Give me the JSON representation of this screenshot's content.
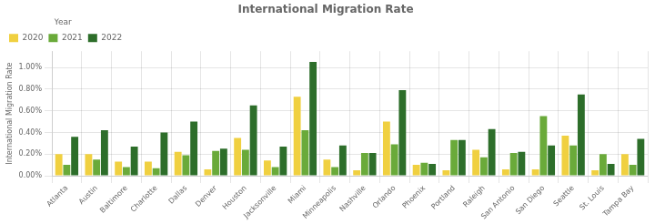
{
  "chart_data": {
    "type": "bar",
    "title": "International Migration Rate",
    "y_label": "International Migration Rate",
    "legend_title": "Year",
    "categories": [
      "Atlanta",
      "Austin",
      "Baltimore",
      "Charlotte",
      "Dallas",
      "Denver",
      "Houston",
      "Jacksonville",
      "Miami",
      "Minneapolis",
      "Nashville",
      "Orlando",
      "Phoenix",
      "Portland",
      "Raleigh",
      "San Antonio",
      "San Diego",
      "Seattle",
      "St. Louis",
      "Tampa Bay"
    ],
    "series": [
      {
        "name": "2020",
        "color": "#f0d040",
        "values": [
          0.002,
          0.002,
          0.0013,
          0.0013,
          0.0022,
          0.0006,
          0.0035,
          0.0014,
          0.0073,
          0.0015,
          0.0005,
          0.005,
          0.001,
          0.0005,
          0.0024,
          0.0006,
          0.0006,
          0.0037,
          0.0005,
          0.002
        ]
      },
      {
        "name": "2021",
        "color": "#6aaa3a",
        "values": [
          0.001,
          0.0015,
          0.0008,
          0.0007,
          0.0019,
          0.0023,
          0.0024,
          0.0008,
          0.0042,
          0.0008,
          0.0021,
          0.0029,
          0.0012,
          0.0033,
          0.0017,
          0.0021,
          0.0055,
          0.0028,
          0.002,
          0.001
        ]
      },
      {
        "name": "2022",
        "color": "#2d6e2a",
        "values": [
          0.0036,
          0.0042,
          0.0027,
          0.004,
          0.005,
          0.0025,
          0.0065,
          0.0027,
          0.0105,
          0.0028,
          0.0021,
          0.0079,
          0.0011,
          0.0033,
          0.0043,
          0.0022,
          0.0028,
          0.0075,
          0.0011,
          0.0034
        ]
      }
    ],
    "ylim": [
      0,
      0.0115
    ],
    "yticks": [
      {
        "value": 0.0,
        "label": "0.00%"
      },
      {
        "value": 0.002,
        "label": "0.20%"
      },
      {
        "value": 0.004,
        "label": "0.40%"
      },
      {
        "value": 0.006,
        "label": "0.60%"
      },
      {
        "value": 0.008,
        "label": "0.80%"
      },
      {
        "value": 0.01,
        "label": "1.00%"
      }
    ],
    "grid": true,
    "legend": "upper left"
  }
}
